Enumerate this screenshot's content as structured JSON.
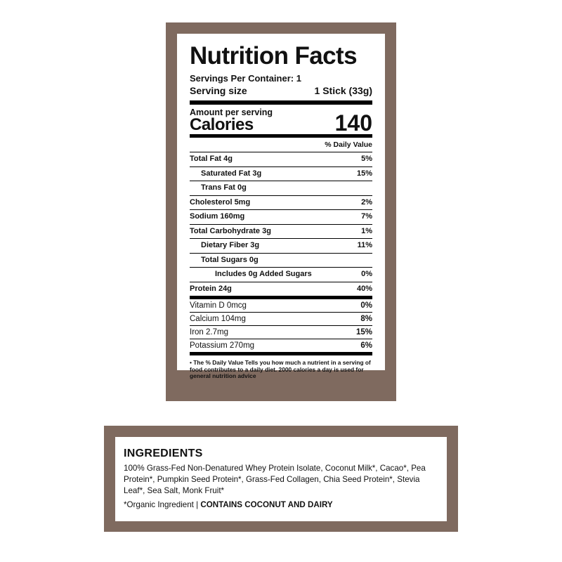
{
  "nutrition": {
    "title": "Nutrition Facts",
    "servings_per_container": "Servings Per Container: 1",
    "serving_size_label": "Serving size",
    "serving_size_value": "1 Stick (33g)",
    "amount_per_serving": "Amount per serving",
    "calories_label": "Calories",
    "calories_value": "140",
    "daily_value_header": "% Daily Value",
    "rows": [
      {
        "name": "Total Fat 4g",
        "dv": "5%"
      },
      {
        "name": "Saturated Fat 3g",
        "dv": "15%"
      },
      {
        "name": "Trans Fat 0g",
        "dv": ""
      },
      {
        "name": "Cholesterol 5mg",
        "dv": "2%"
      },
      {
        "name": "Sodium 160mg",
        "dv": "7%"
      },
      {
        "name": "Total Carbohydrate 3g",
        "dv": "1%"
      },
      {
        "name": "Dietary Fiber 3g",
        "dv": "11%"
      },
      {
        "name": "Total Sugars 0g",
        "dv": ""
      },
      {
        "name": "Includes 0g Added Sugars",
        "dv": "0%"
      },
      {
        "name": "Protein 24g",
        "dv": "40%"
      }
    ],
    "vitamins": [
      {
        "name": "Vitamin D 0mcg",
        "dv": "0%"
      },
      {
        "name": "Calcium 104mg",
        "dv": "8%"
      },
      {
        "name": "Iron 2.7mg",
        "dv": "15%"
      },
      {
        "name": "Potassium 270mg",
        "dv": "6%"
      }
    ],
    "footnote": "• The % Daily Value Tells you how much a nutrient in a serving of food contributes to a daily diet. 2000 calories a day is used for general nutrition advice"
  },
  "ingredients": {
    "title": "INGREDIENTS",
    "text": "100% Grass-Fed Non-Denatured Whey Protein Isolate, Coconut Milk*, Cacao*, Pea Protein*, Pumpkin Seed Protein*, Grass-Fed Collagen, Chia Seed Protein*, Stevia Leaf*, Sea Salt, Monk Fruit*",
    "note": "*Organic Ingredient | ",
    "allergens": "CONTAINS COCONUT AND DAIRY"
  },
  "colors": {
    "frame": "#7f6a5f"
  }
}
